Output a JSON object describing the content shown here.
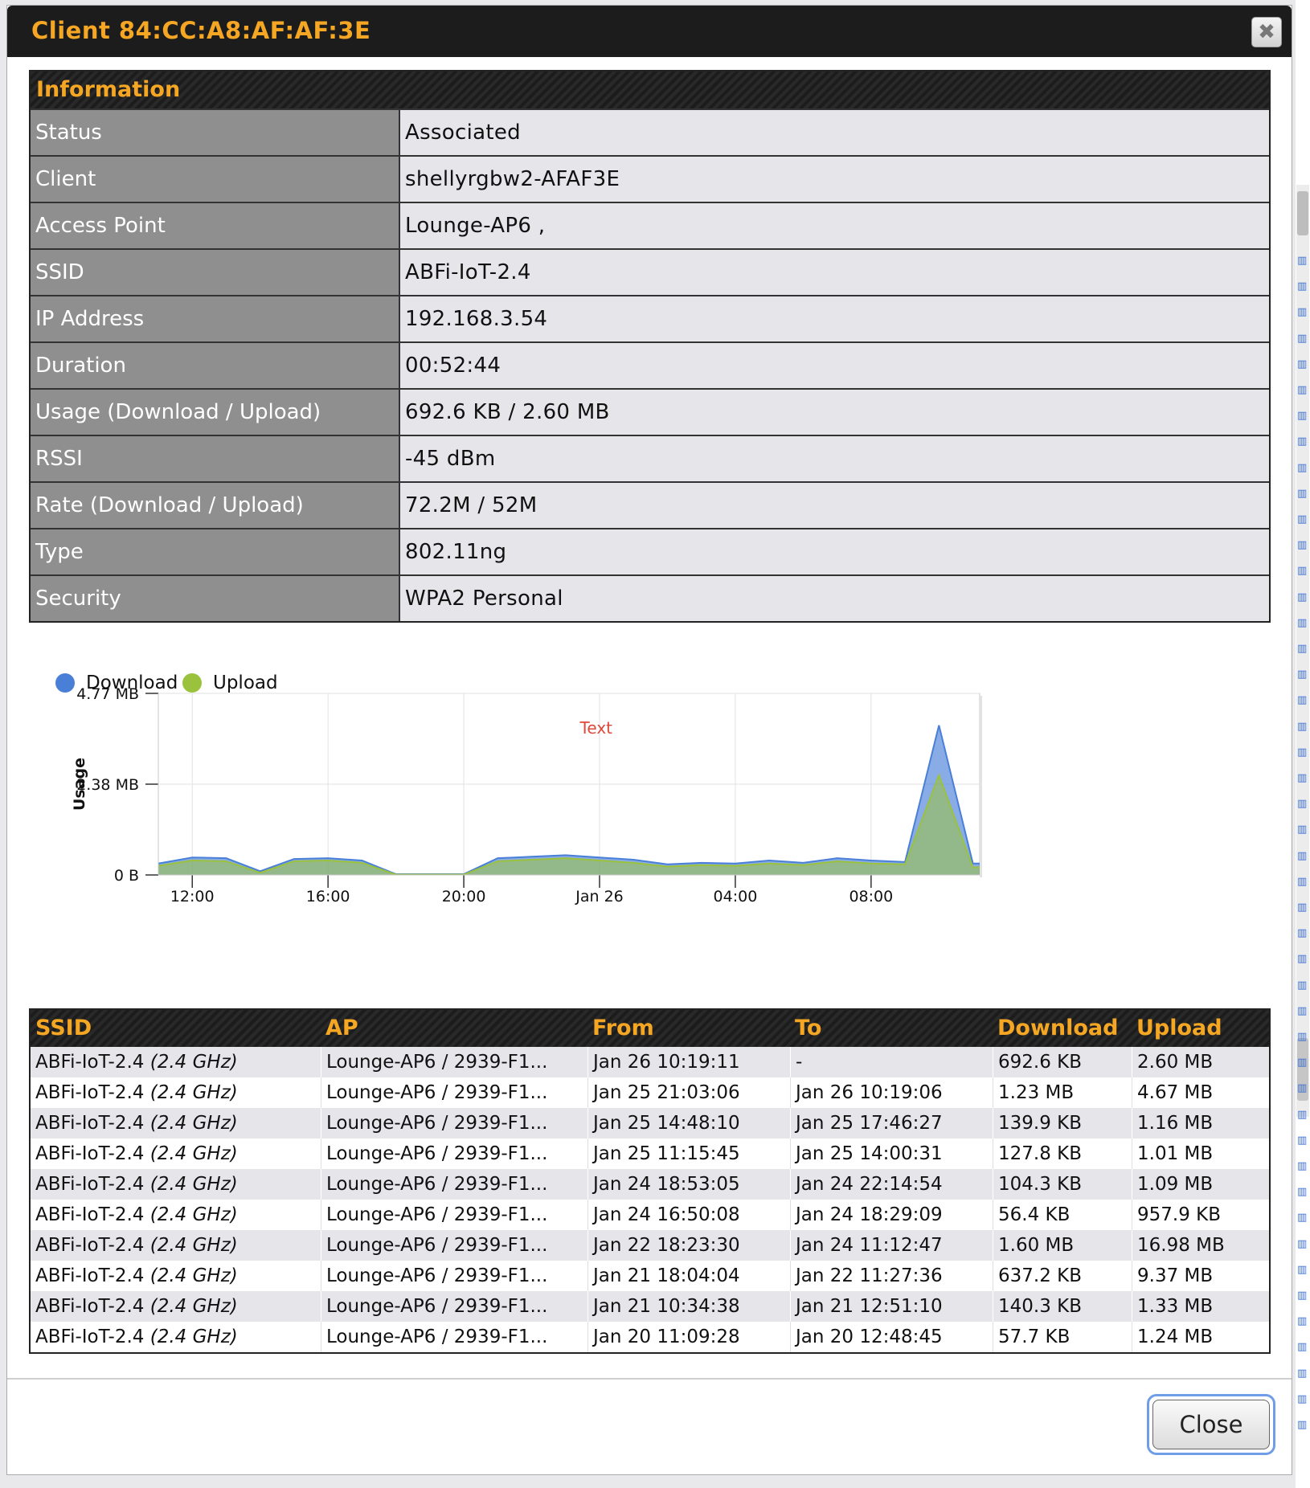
{
  "dialog": {
    "title": "Client 84:CC:A8:AF:AF:3E",
    "close_x": "✖",
    "close_button": "Close"
  },
  "information": {
    "header": "Information",
    "rows": [
      {
        "label": "Status",
        "value": "Associated"
      },
      {
        "label": "Client",
        "value": "shellyrgbw2-AFAF3E"
      },
      {
        "label": "Access Point",
        "value": "Lounge-AP6 ,"
      },
      {
        "label": "SSID",
        "value": "ABFi-IoT-2.4"
      },
      {
        "label": "IP Address",
        "value": "192.168.3.54"
      },
      {
        "label": "Duration",
        "value": "00:52:44"
      },
      {
        "label": "Usage (Download / Upload)",
        "value": "692.6 KB / 2.60 MB"
      },
      {
        "label": "RSSI",
        "value": "-45 dBm"
      },
      {
        "label": "Rate (Download / Upload)",
        "value": "72.2M / 52M"
      },
      {
        "label": "Type",
        "value": "802.11ng"
      },
      {
        "label": "Security",
        "value": "WPA2 Personal"
      }
    ]
  },
  "chart_data": {
    "type": "area",
    "title": "",
    "annotation": "Text",
    "xlabel": "",
    "ylabel": "Usage",
    "y_ticks": [
      "4.77 MB",
      "2.38 MB",
      "0 B"
    ],
    "ylim_mb": [
      0,
      4.77
    ],
    "x_ticks": [
      "12:00",
      "16:00",
      "20:00",
      "Jan 26",
      "04:00",
      "08:00"
    ],
    "x_hours_range": [
      -1,
      23.2
    ],
    "x_hours": [
      -1,
      0,
      1,
      2,
      3,
      4,
      5,
      6,
      7,
      8,
      9,
      10,
      11,
      12,
      13,
      14,
      15,
      16,
      17,
      18,
      19,
      20,
      21,
      22,
      23,
      23.2
    ],
    "series": [
      {
        "name": "Download",
        "color": "#4a7fd8",
        "values": [
          0.3,
          0.46,
          0.44,
          0.1,
          0.42,
          0.44,
          0.38,
          0.02,
          0.02,
          0.02,
          0.44,
          0.48,
          0.52,
          0.46,
          0.4,
          0.28,
          0.32,
          0.3,
          0.38,
          0.32,
          0.44,
          0.38,
          0.34,
          3.93,
          0.3,
          0.3
        ]
      },
      {
        "name": "Upload",
        "color": "#9bc23c",
        "values": [
          0.24,
          0.38,
          0.36,
          0.06,
          0.36,
          0.38,
          0.32,
          0.01,
          0.01,
          0.01,
          0.36,
          0.4,
          0.44,
          0.38,
          0.32,
          0.22,
          0.26,
          0.24,
          0.3,
          0.26,
          0.36,
          0.3,
          0.28,
          2.62,
          0.2,
          0.2
        ]
      }
    ],
    "grid": true,
    "legend_position": "top-left"
  },
  "sessions": {
    "headers": [
      "SSID",
      "AP",
      "From",
      "To",
      "Download",
      "Upload"
    ],
    "rows": [
      {
        "ssid": "ABFi-IoT-2.4",
        "band": "(2.4 GHz)",
        "ap": "Lounge-AP6 / 2939-F1...",
        "from": "Jan 26 10:19:11",
        "to": "-",
        "download": "692.6 KB",
        "upload": "2.60 MB"
      },
      {
        "ssid": "ABFi-IoT-2.4",
        "band": "(2.4 GHz)",
        "ap": "Lounge-AP6 / 2939-F1...",
        "from": "Jan 25 21:03:06",
        "to": "Jan 26 10:19:06",
        "download": "1.23 MB",
        "upload": "4.67 MB"
      },
      {
        "ssid": "ABFi-IoT-2.4",
        "band": "(2.4 GHz)",
        "ap": "Lounge-AP6 / 2939-F1...",
        "from": "Jan 25 14:48:10",
        "to": "Jan 25 17:46:27",
        "download": "139.9 KB",
        "upload": "1.16 MB"
      },
      {
        "ssid": "ABFi-IoT-2.4",
        "band": "(2.4 GHz)",
        "ap": "Lounge-AP6 / 2939-F1...",
        "from": "Jan 25 11:15:45",
        "to": "Jan 25 14:00:31",
        "download": "127.8 KB",
        "upload": "1.01 MB"
      },
      {
        "ssid": "ABFi-IoT-2.4",
        "band": "(2.4 GHz)",
        "ap": "Lounge-AP6 / 2939-F1...",
        "from": "Jan 24 18:53:05",
        "to": "Jan 24 22:14:54",
        "download": "104.3 KB",
        "upload": "1.09 MB"
      },
      {
        "ssid": "ABFi-IoT-2.4",
        "band": "(2.4 GHz)",
        "ap": "Lounge-AP6 / 2939-F1...",
        "from": "Jan 24 16:50:08",
        "to": "Jan 24 18:29:09",
        "download": "56.4 KB",
        "upload": "957.9 KB"
      },
      {
        "ssid": "ABFi-IoT-2.4",
        "band": "(2.4 GHz)",
        "ap": "Lounge-AP6 / 2939-F1...",
        "from": "Jan 22 18:23:30",
        "to": "Jan 24 11:12:47",
        "download": "1.60 MB",
        "upload": "16.98 MB"
      },
      {
        "ssid": "ABFi-IoT-2.4",
        "band": "(2.4 GHz)",
        "ap": "Lounge-AP6 / 2939-F1...",
        "from": "Jan 21 18:04:04",
        "to": "Jan 22 11:27:36",
        "download": "637.2 KB",
        "upload": "9.37 MB"
      },
      {
        "ssid": "ABFi-IoT-2.4",
        "band": "(2.4 GHz)",
        "ap": "Lounge-AP6 / 2939-F1...",
        "from": "Jan 21 10:34:38",
        "to": "Jan 21 12:51:10",
        "download": "140.3 KB",
        "upload": "1.33 MB"
      },
      {
        "ssid": "ABFi-IoT-2.4",
        "band": "(2.4 GHz)",
        "ap": "Lounge-AP6 / 2939-F1...",
        "from": "Jan 20 11:09:28",
        "to": "Jan 20 12:48:45",
        "download": "57.7 KB",
        "upload": "1.24 MB"
      }
    ]
  },
  "colors": {
    "title_accent": "#f5a623",
    "header_bg": "#1c1c1c",
    "label_bg": "#8f8f8f",
    "value_bg": "#e6e6ea",
    "annotation": "#e0483a"
  },
  "background_page": {
    "side_icon": "bar-chart-icon"
  }
}
